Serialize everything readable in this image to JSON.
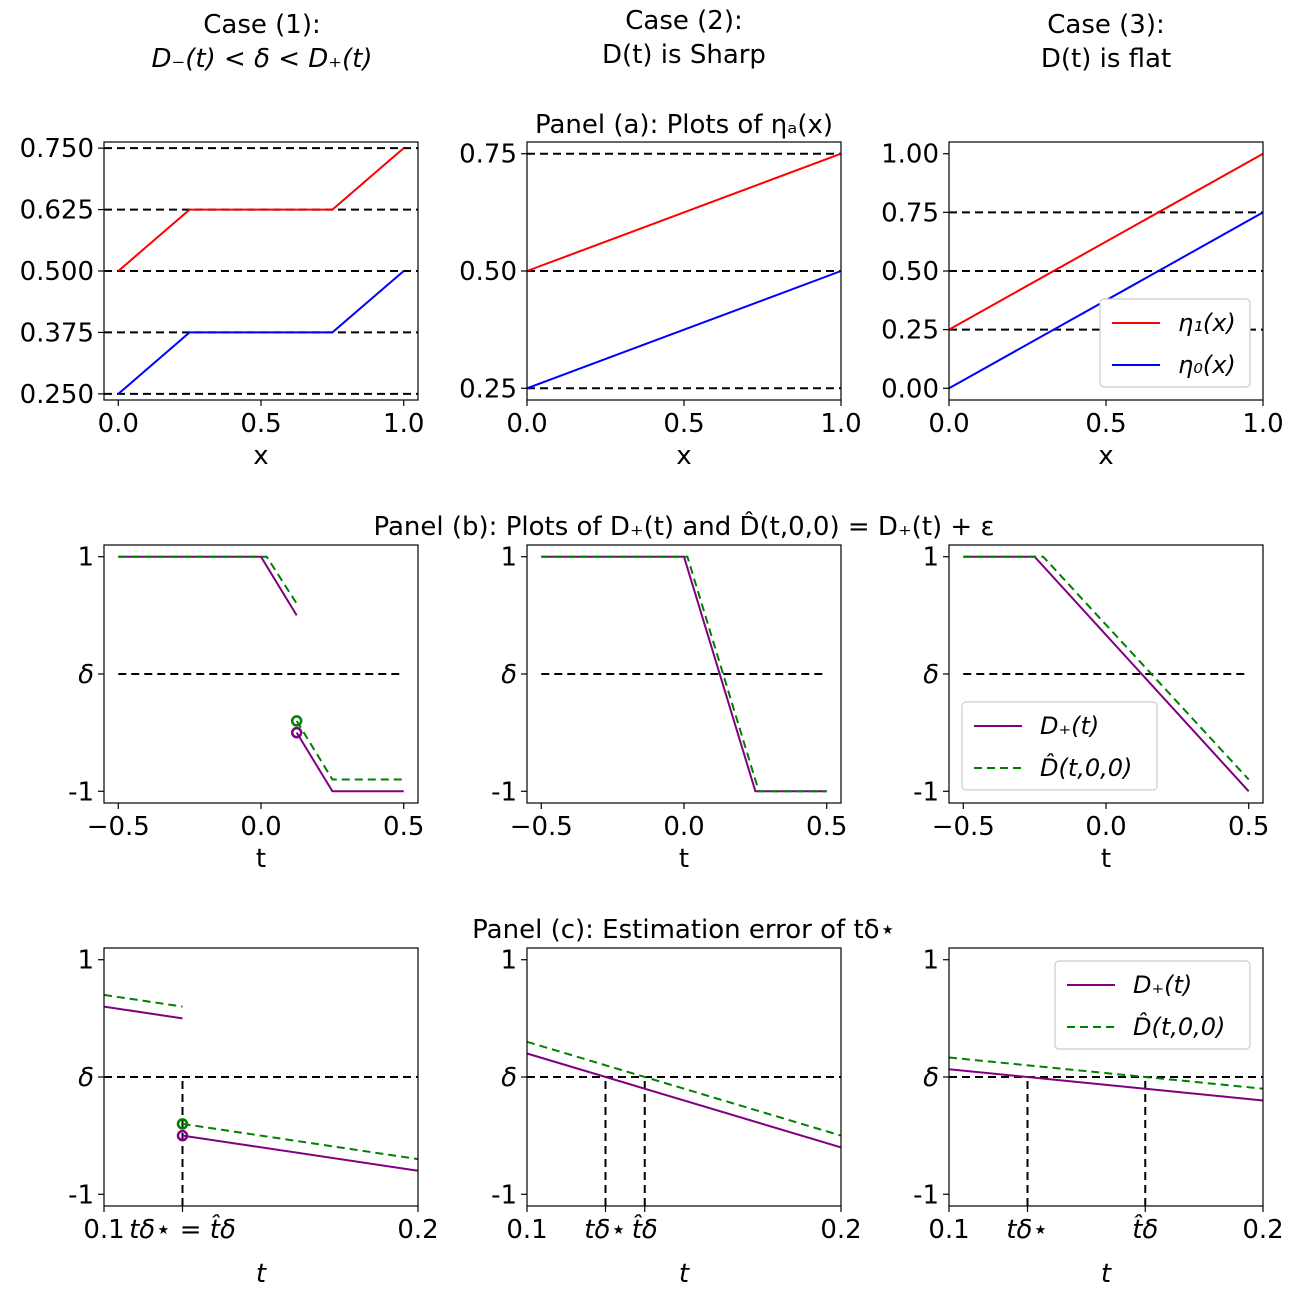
{
  "figure": {
    "case_titles": [
      {
        "line1": "Case (1):",
        "line2": "D₋(t) < δ < D₊(t)"
      },
      {
        "line1": "Case (2):",
        "line2": "D(t) is Sharp"
      },
      {
        "line1": "Case (3):",
        "line2": "D(t) is flat"
      }
    ],
    "panel_titles": {
      "a": "Panel (a): Plots of ηₐ(x)",
      "b": "Panel (b): Plots of D₊(t) and D̂(t,0,0) = D₊(t) + ε",
      "c": "Panel (c): Estimation error of tδ⋆"
    }
  },
  "colors": {
    "eta1": "#ff0000",
    "eta0": "#0000ff",
    "dplus": "#800080",
    "dhat": "#008000",
    "ref": "#000000"
  },
  "chart_data": [
    {
      "id": "a1",
      "type": "line",
      "xlabel": "x",
      "ylabel": "",
      "xlim": [
        -0.05,
        1.05
      ],
      "ylim": [
        0.2375,
        0.7625
      ],
      "xticks": [
        {
          "v": 0,
          "l": "0.0"
        },
        {
          "v": 0.5,
          "l": "0.5"
        },
        {
          "v": 1,
          "l": "1.0"
        }
      ],
      "yticks": [
        {
          "v": 0.25,
          "l": "0.250"
        },
        {
          "v": 0.375,
          "l": "0.375"
        },
        {
          "v": 0.5,
          "l": "0.500"
        },
        {
          "v": 0.625,
          "l": "0.625"
        },
        {
          "v": 0.75,
          "l": "0.750"
        }
      ],
      "hlines": [
        0.25,
        0.375,
        0.5,
        0.625,
        0.75
      ],
      "series": [
        {
          "name": "η₁(x)",
          "color": "eta1",
          "dash": false,
          "x": [
            0,
            0.25,
            0.75,
            1
          ],
          "y": [
            0.5,
            0.625,
            0.625,
            0.75
          ]
        },
        {
          "name": "η₀(x)",
          "color": "eta0",
          "dash": false,
          "x": [
            0,
            0.25,
            0.75,
            1
          ],
          "y": [
            0.25,
            0.375,
            0.375,
            0.5
          ]
        }
      ]
    },
    {
      "id": "a2",
      "type": "line",
      "xlabel": "x",
      "ylabel": "",
      "xlim": [
        0,
        1
      ],
      "ylim": [
        0.225,
        0.775
      ],
      "xticks": [
        {
          "v": 0,
          "l": "0.0"
        },
        {
          "v": 0.5,
          "l": "0.5"
        },
        {
          "v": 1,
          "l": "1.0"
        }
      ],
      "yticks": [
        {
          "v": 0.25,
          "l": "0.25"
        },
        {
          "v": 0.5,
          "l": "0.50"
        },
        {
          "v": 0.75,
          "l": "0.75"
        }
      ],
      "hlines": [
        0.25,
        0.5,
        0.75
      ],
      "series": [
        {
          "name": "η₁(x)",
          "color": "eta1",
          "dash": false,
          "x": [
            0,
            1
          ],
          "y": [
            0.5,
            0.75
          ]
        },
        {
          "name": "η₀(x)",
          "color": "eta0",
          "dash": false,
          "x": [
            0,
            1
          ],
          "y": [
            0.25,
            0.5
          ]
        }
      ]
    },
    {
      "id": "a3",
      "type": "line",
      "xlabel": "x",
      "ylabel": "",
      "xlim": [
        0,
        1
      ],
      "ylim": [
        -0.05,
        1.05
      ],
      "xticks": [
        {
          "v": 0,
          "l": "0.0"
        },
        {
          "v": 0.5,
          "l": "0.5"
        },
        {
          "v": 1,
          "l": "1.0"
        }
      ],
      "yticks": [
        {
          "v": 0,
          "l": "0.00"
        },
        {
          "v": 0.25,
          "l": "0.25"
        },
        {
          "v": 0.5,
          "l": "0.50"
        },
        {
          "v": 0.75,
          "l": "0.75"
        },
        {
          "v": 1,
          "l": "1.00"
        }
      ],
      "hlines": [
        0.25,
        0.5,
        0.75
      ],
      "legend": {
        "loc": "lower-right",
        "entries": [
          "η₁(x)",
          "η₀(x)"
        ]
      },
      "series": [
        {
          "name": "η₁(x)",
          "color": "eta1",
          "dash": false,
          "x": [
            0,
            1
          ],
          "y": [
            0.25,
            1.0
          ]
        },
        {
          "name": "η₀(x)",
          "color": "eta0",
          "dash": false,
          "x": [
            0,
            1
          ],
          "y": [
            0.0,
            0.75
          ]
        }
      ]
    },
    {
      "id": "b1",
      "type": "line",
      "xlabel": "t",
      "ylabel": "",
      "xlim": [
        -0.55,
        0.55
      ],
      "ylim": [
        -1.1,
        1.1
      ],
      "xticks": [
        {
          "v": -0.5,
          "l": "−0.5"
        },
        {
          "v": 0,
          "l": "0.0"
        },
        {
          "v": 0.5,
          "l": "0.5"
        }
      ],
      "yticks": [
        {
          "v": -1,
          "l": "-1"
        },
        {
          "v": 0,
          "l": "δ"
        },
        {
          "v": 1,
          "l": "1"
        }
      ],
      "hlines_partial": [
        {
          "y": 0,
          "x": [
            -0.5,
            0.5
          ]
        }
      ],
      "series": [
        {
          "name": "D₊(t)",
          "color": "dplus",
          "dash": false,
          "x": [
            -0.5,
            0,
            0.125
          ],
          "y": [
            1,
            1,
            0.5
          ]
        },
        {
          "name": "D₊(t)",
          "color": "dplus",
          "dash": false,
          "x": [
            0.125,
            0.25,
            0.5
          ],
          "y": [
            -0.5,
            -1,
            -1
          ]
        },
        {
          "name": "D̂(t,0,0)",
          "color": "dhat",
          "dash": true,
          "x": [
            -0.5,
            0.02,
            0.125
          ],
          "y": [
            1,
            1,
            0.6
          ]
        },
        {
          "name": "D̂(t,0,0)",
          "color": "dhat",
          "dash": true,
          "x": [
            0.125,
            0.25,
            0.5
          ],
          "y": [
            -0.4,
            -0.9,
            -0.9
          ]
        }
      ],
      "markers": [
        {
          "x": 0.125,
          "y": -0.5,
          "color": "dplus"
        },
        {
          "x": 0.125,
          "y": -0.4,
          "color": "dhat"
        }
      ]
    },
    {
      "id": "b2",
      "type": "line",
      "xlabel": "t",
      "ylabel": "",
      "xlim": [
        -0.55,
        0.55
      ],
      "ylim": [
        -1.1,
        1.1
      ],
      "xticks": [
        {
          "v": -0.5,
          "l": "−0.5"
        },
        {
          "v": 0,
          "l": "0.0"
        },
        {
          "v": 0.5,
          "l": "0.5"
        }
      ],
      "yticks": [
        {
          "v": -1,
          "l": "-1"
        },
        {
          "v": 0,
          "l": "δ"
        },
        {
          "v": 1,
          "l": "1"
        }
      ],
      "hlines_partial": [
        {
          "y": 0,
          "x": [
            -0.5,
            0.5
          ]
        }
      ],
      "series": [
        {
          "name": "D₊(t)",
          "color": "dplus",
          "dash": false,
          "x": [
            -0.5,
            0,
            0.25,
            0.5
          ],
          "y": [
            1,
            1,
            -1,
            -1
          ]
        },
        {
          "name": "D̂(t,0,0)",
          "color": "dhat",
          "dash": true,
          "x": [
            -0.5,
            0.012,
            0.262,
            0.5
          ],
          "y": [
            1,
            1,
            -1,
            -1
          ]
        }
      ]
    },
    {
      "id": "b3",
      "type": "line",
      "xlabel": "t",
      "ylabel": "",
      "xlim": [
        -0.55,
        0.55
      ],
      "ylim": [
        -1.1,
        1.1
      ],
      "xticks": [
        {
          "v": -0.5,
          "l": "−0.5"
        },
        {
          "v": 0,
          "l": "0.0"
        },
        {
          "v": 0.5,
          "l": "0.5"
        }
      ],
      "yticks": [
        {
          "v": -1,
          "l": "-1"
        },
        {
          "v": 0,
          "l": "δ"
        },
        {
          "v": 1,
          "l": "1"
        }
      ],
      "hlines_partial": [
        {
          "y": 0,
          "x": [
            -0.5,
            0.5
          ]
        }
      ],
      "legend": {
        "loc": "lower-left",
        "entries": [
          "D₊(t)",
          "D̂(t,0,0)"
        ]
      },
      "series": [
        {
          "name": "D₊(t)",
          "color": "dplus",
          "dash": false,
          "x": [
            -0.5,
            -0.25,
            0.5
          ],
          "y": [
            1,
            1,
            -1
          ]
        },
        {
          "name": "D̂(t,0,0)",
          "color": "dhat",
          "dash": true,
          "x": [
            -0.5,
            -0.22,
            0.5
          ],
          "y": [
            1,
            1,
            -0.9
          ]
        }
      ]
    },
    {
      "id": "c1",
      "type": "line",
      "xlabel": "t",
      "ylabel": "",
      "xlim": [
        0.1,
        0.2
      ],
      "ylim": [
        -1.1,
        1.1
      ],
      "xticks": [
        {
          "v": 0.1,
          "l": "0.1"
        },
        {
          "v": 0.125,
          "l": "tδ⋆ = t̂δ"
        },
        {
          "v": 0.2,
          "l": "0.2"
        }
      ],
      "yticks": [
        {
          "v": -1,
          "l": "-1"
        },
        {
          "v": 0,
          "l": "δ"
        },
        {
          "v": 1,
          "l": "1"
        }
      ],
      "hlines_partial": [
        {
          "y": 0,
          "x": [
            0.1,
            0.2
          ]
        }
      ],
      "vlines": [
        {
          "x": 0.125,
          "y": [
            -1.1,
            0
          ]
        }
      ],
      "series": [
        {
          "name": "D₊(t)",
          "color": "dplus",
          "dash": false,
          "x": [
            0.1,
            0.125
          ],
          "y": [
            0.6,
            0.5
          ]
        },
        {
          "name": "D₊(t)",
          "color": "dplus",
          "dash": false,
          "x": [
            0.125,
            0.2
          ],
          "y": [
            -0.5,
            -0.8
          ]
        },
        {
          "name": "D̂(t,0,0)",
          "color": "dhat",
          "dash": true,
          "x": [
            0.1,
            0.125
          ],
          "y": [
            0.7,
            0.6
          ]
        },
        {
          "name": "D̂(t,0,0)",
          "color": "dhat",
          "dash": true,
          "x": [
            0.125,
            0.2
          ],
          "y": [
            -0.4,
            -0.7
          ]
        }
      ],
      "markers": [
        {
          "x": 0.125,
          "y": -0.5,
          "color": "dplus"
        },
        {
          "x": 0.125,
          "y": -0.4,
          "color": "dhat"
        }
      ]
    },
    {
      "id": "c2",
      "type": "line",
      "xlabel": "t",
      "ylabel": "",
      "xlim": [
        0.1,
        0.2
      ],
      "ylim": [
        -1.1,
        1.1
      ],
      "xticks": [
        {
          "v": 0.1,
          "l": "0.1"
        },
        {
          "v": 0.125,
          "l": "tδ⋆"
        },
        {
          "v": 0.1375,
          "l": "t̂δ"
        },
        {
          "v": 0.2,
          "l": "0.2"
        }
      ],
      "yticks": [
        {
          "v": -1,
          "l": "-1"
        },
        {
          "v": 0,
          "l": "δ"
        },
        {
          "v": 1,
          "l": "1"
        }
      ],
      "hlines_partial": [
        {
          "y": 0,
          "x": [
            0.1,
            0.2
          ]
        }
      ],
      "vlines": [
        {
          "x": 0.125,
          "y": [
            -1.1,
            0
          ]
        },
        {
          "x": 0.1375,
          "y": [
            -1.1,
            0
          ]
        }
      ],
      "series": [
        {
          "name": "D₊(t)",
          "color": "dplus",
          "dash": false,
          "x": [
            0.1,
            0.2
          ],
          "y": [
            0.2,
            -0.6
          ]
        },
        {
          "name": "D̂(t,0,0)",
          "color": "dhat",
          "dash": true,
          "x": [
            0.1,
            0.2
          ],
          "y": [
            0.3,
            -0.5
          ]
        }
      ]
    },
    {
      "id": "c3",
      "type": "line",
      "xlabel": "t",
      "ylabel": "",
      "xlim": [
        0.1,
        0.2
      ],
      "ylim": [
        -1.1,
        1.1
      ],
      "xticks": [
        {
          "v": 0.1,
          "l": "0.1"
        },
        {
          "v": 0.125,
          "l": "tδ⋆"
        },
        {
          "v": 0.1625,
          "l": "t̂δ"
        },
        {
          "v": 0.2,
          "l": "0.2"
        }
      ],
      "yticks": [
        {
          "v": -1,
          "l": "-1"
        },
        {
          "v": 0,
          "l": "δ"
        },
        {
          "v": 1,
          "l": "1"
        }
      ],
      "hlines_partial": [
        {
          "y": 0,
          "x": [
            0.1,
            0.2
          ]
        }
      ],
      "vlines": [
        {
          "x": 0.125,
          "y": [
            -1.1,
            0
          ]
        },
        {
          "x": 0.1625,
          "y": [
            -1.1,
            0
          ]
        }
      ],
      "legend": {
        "loc": "upper-right",
        "entries": [
          "D₊(t)",
          "D̂(t,0,0)"
        ]
      },
      "series": [
        {
          "name": "D₊(t)",
          "color": "dplus",
          "dash": false,
          "x": [
            0.1,
            0.2
          ],
          "y": [
            0.0667,
            -0.2
          ]
        },
        {
          "name": "D̂(t,0,0)",
          "color": "dhat",
          "dash": true,
          "x": [
            0.1,
            0.2
          ],
          "y": [
            0.1667,
            -0.1
          ]
        }
      ]
    }
  ]
}
